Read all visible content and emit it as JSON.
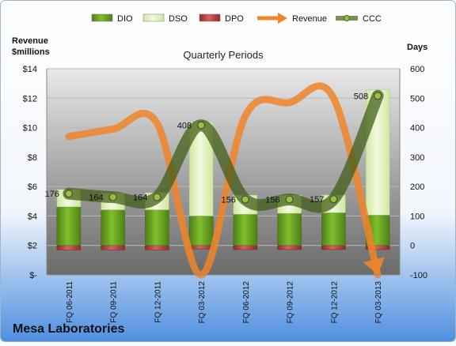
{
  "chart_data": {
    "type": "bar",
    "company": "Mesa Laboratories",
    "subtitle": "Quarterly Periods",
    "y_left_label": [
      "Revenue",
      "$millions"
    ],
    "y_right_label": "Days",
    "y_left_ticks": [
      "$-",
      "$2",
      "$4",
      "$6",
      "$8",
      "$10",
      "$12",
      "$14"
    ],
    "y_right_ticks": [
      "-100",
      "0",
      "100",
      "200",
      "300",
      "400",
      "500",
      "600"
    ],
    "y_left_lim": [
      0,
      14
    ],
    "y_right_lim": [
      -100,
      600
    ],
    "legend_position": "top",
    "legend": [
      {
        "name": "DIO",
        "kind": "bar",
        "color": "#6aa121"
      },
      {
        "name": "DSO",
        "kind": "bar",
        "color": "#e9f5c9"
      },
      {
        "name": "DPO",
        "kind": "bar",
        "color": "#c0504d"
      },
      {
        "name": "Revenue",
        "kind": "arrow",
        "color": "#f0852a"
      },
      {
        "name": "CCC",
        "kind": "line",
        "color": "#4e6b1c"
      }
    ],
    "categories": [
      "FQ 06-2011",
      "FQ 09-2011",
      "FQ 12-2011",
      "FQ 03-2012",
      "FQ 06-2012",
      "FQ 09-2012",
      "FQ 12-2012",
      "FQ 03-2013"
    ],
    "series": [
      {
        "name": "DIO",
        "axis": "days",
        "values": [
          131,
          121,
          121,
          100,
          106,
          109,
          111,
          103
        ]
      },
      {
        "name": "DSO",
        "axis": "days",
        "values": [
          59,
          57,
          58,
          320,
          65,
          62,
          60,
          425
        ]
      },
      {
        "name": "DPO",
        "axis": "days",
        "values": [
          -15,
          -15,
          -15,
          -12,
          -14,
          -14,
          -14,
          -14
        ]
      },
      {
        "name": "Revenue",
        "axis": "dollars",
        "values": [
          9.4,
          9.9,
          10.3,
          0.0,
          10.8,
          11.7,
          12.0,
          0.0
        ]
      },
      {
        "name": "CCC",
        "axis": "days",
        "values": [
          176,
          164,
          164,
          408,
          156,
          156,
          157,
          508
        ]
      }
    ],
    "ccc_labels": [
      "176",
      "164",
      "164",
      "408",
      "156",
      "156",
      "157",
      "508"
    ]
  }
}
